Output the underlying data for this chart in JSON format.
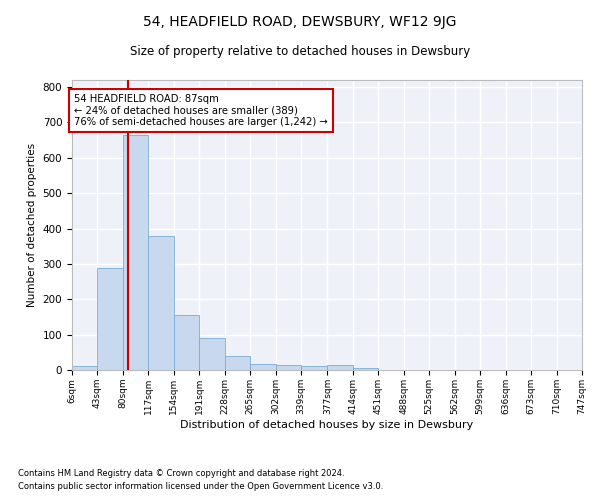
{
  "title": "54, HEADFIELD ROAD, DEWSBURY, WF12 9JG",
  "subtitle": "Size of property relative to detached houses in Dewsbury",
  "xlabel": "Distribution of detached houses by size in Dewsbury",
  "ylabel": "Number of detached properties",
  "bar_color": "#c8d8ee",
  "bar_edge_color": "#7aadd4",
  "background_color": "#eef2f8",
  "grid_color": "#ffffff",
  "annotation_box_color": "#cc0000",
  "annotation_line1": "54 HEADFIELD ROAD: 87sqm",
  "annotation_line2": "← 24% of detached houses are smaller (389)",
  "annotation_line3": "76% of semi-detached houses are larger (1,242) →",
  "vline_x": 87,
  "vline_color": "#cc0000",
  "footnote1": "Contains HM Land Registry data © Crown copyright and database right 2024.",
  "footnote2": "Contains public sector information licensed under the Open Government Licence v3.0.",
  "bin_edges": [
    6,
    43,
    80,
    117,
    154,
    191,
    228,
    265,
    302,
    339,
    377,
    414,
    451,
    488,
    525,
    562,
    599,
    636,
    673,
    710,
    747
  ],
  "bar_heights": [
    10,
    289,
    665,
    378,
    155,
    90,
    40,
    16,
    15,
    10,
    13,
    7,
    0,
    0,
    0,
    0,
    0,
    0,
    0,
    0
  ],
  "tick_labels": [
    "6sqm",
    "43sqm",
    "80sqm",
    "117sqm",
    "154sqm",
    "191sqm",
    "228sqm",
    "265sqm",
    "302sqm",
    "339sqm",
    "377sqm",
    "414sqm",
    "451sqm",
    "488sqm",
    "525sqm",
    "562sqm",
    "599sqm",
    "636sqm",
    "673sqm",
    "710sqm",
    "747sqm"
  ],
  "ylim": [
    0,
    820
  ],
  "yticks": [
    0,
    100,
    200,
    300,
    400,
    500,
    600,
    700,
    800
  ]
}
